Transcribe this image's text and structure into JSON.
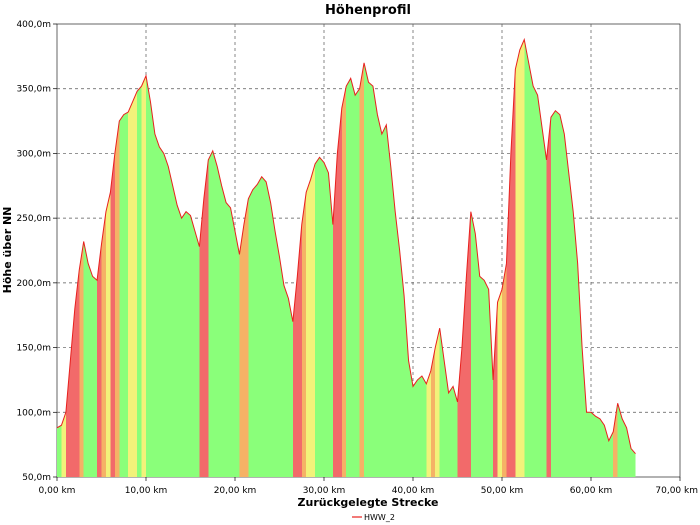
{
  "chart_data": {
    "type": "area",
    "title": "Höhenprofil",
    "xlabel": "Zurückgelegte Strecke",
    "ylabel": "Höhe über NN",
    "xlim": [
      0,
      70
    ],
    "ylim": [
      50,
      400
    ],
    "x_ticks": [
      0,
      10,
      20,
      30,
      40,
      50,
      60,
      70
    ],
    "x_tick_labels": [
      "0,00 km",
      "10,00 km",
      "20,00 km",
      "30,00 km",
      "40,00 km",
      "50,00 km",
      "60,00 km",
      "70,00 km"
    ],
    "y_ticks": [
      50,
      100,
      150,
      200,
      250,
      300,
      350,
      400
    ],
    "y_tick_labels": [
      "50,0m",
      "100,0m",
      "150,0m",
      "200,0m",
      "250,0m",
      "300,0m",
      "350,0m",
      "400,0m"
    ],
    "grid": true,
    "legend_position": "bottom-center",
    "colors": {
      "line": "#e8201e",
      "green": "#8aff7a",
      "yellow": "#f2f27a",
      "orange": "#f5b266",
      "red": "#f26a6a"
    },
    "series": [
      {
        "name": "HWW_2",
        "x": [
          0.0,
          0.5,
          1.0,
          1.5,
          2.0,
          2.5,
          3.0,
          3.5,
          4.0,
          4.5,
          5.0,
          5.5,
          6.0,
          6.5,
          7.0,
          7.5,
          8.0,
          8.5,
          9.0,
          9.5,
          10.0,
          10.5,
          11.0,
          11.5,
          12.0,
          12.5,
          13.0,
          13.5,
          14.0,
          14.5,
          15.0,
          15.5,
          16.0,
          16.5,
          17.0,
          17.5,
          18.0,
          18.5,
          19.0,
          19.5,
          20.0,
          20.5,
          21.0,
          21.5,
          22.0,
          22.5,
          23.0,
          23.5,
          24.0,
          24.5,
          25.0,
          25.5,
          26.0,
          26.5,
          27.0,
          27.5,
          28.0,
          28.5,
          29.0,
          29.5,
          30.0,
          30.5,
          31.0,
          31.5,
          32.0,
          32.5,
          33.0,
          33.5,
          34.0,
          34.5,
          35.0,
          35.5,
          36.0,
          36.5,
          37.0,
          37.5,
          38.0,
          38.5,
          39.0,
          39.5,
          40.0,
          40.5,
          41.0,
          41.5,
          42.0,
          42.5,
          43.0,
          43.5,
          44.0,
          44.5,
          45.0,
          45.5,
          46.0,
          46.5,
          47.0,
          47.5,
          48.0,
          48.5,
          49.0,
          49.5,
          50.0,
          50.5,
          51.0,
          51.5,
          52.0,
          52.5,
          53.0,
          53.5,
          54.0,
          54.5,
          55.0,
          55.5,
          56.0,
          56.5,
          57.0,
          57.5,
          58.0,
          58.5,
          59.0,
          59.5,
          60.0,
          60.5,
          61.0,
          61.5,
          62.0,
          62.5,
          63.0,
          63.5,
          64.0,
          64.5,
          65.0
        ],
        "y": [
          88,
          90,
          100,
          140,
          180,
          210,
          232,
          215,
          205,
          202,
          230,
          255,
          270,
          300,
          325,
          330,
          332,
          340,
          348,
          352,
          360,
          340,
          315,
          305,
          300,
          290,
          275,
          260,
          250,
          255,
          252,
          240,
          228,
          265,
          295,
          302,
          290,
          275,
          262,
          258,
          240,
          222,
          245,
          265,
          272,
          276,
          282,
          278,
          262,
          240,
          220,
          198,
          188,
          170,
          205,
          245,
          270,
          280,
          292,
          297,
          293,
          285,
          245,
          300,
          335,
          352,
          358,
          345,
          350,
          370,
          355,
          352,
          330,
          315,
          322,
          290,
          255,
          225,
          190,
          140,
          120,
          125,
          128,
          122,
          132,
          150,
          165,
          140,
          115,
          120,
          108,
          150,
          205,
          255,
          238,
          205,
          202,
          195,
          125,
          185,
          195,
          215,
          300,
          365,
          380,
          388,
          370,
          352,
          345,
          320,
          295,
          328,
          333,
          330,
          315,
          285,
          255,
          215,
          150,
          100,
          100,
          97,
          95,
          90,
          78,
          85,
          107,
          95,
          88,
          72,
          68
        ]
      }
    ]
  }
}
